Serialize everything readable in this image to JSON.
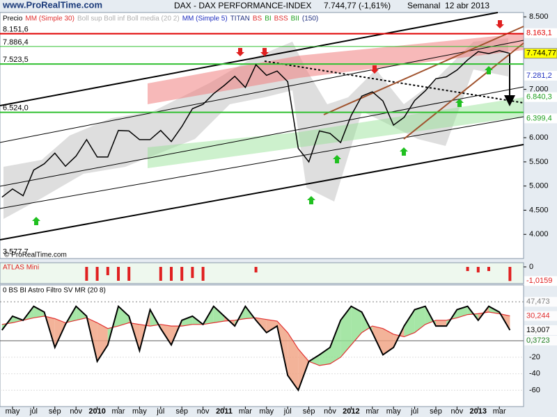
{
  "header": {
    "logo": "www.ProRealTime.com",
    "title": "DAX - DAX PERFORMANCE-INDEX",
    "price": "7.744,77 (-1,61%)",
    "period": "Semanal  12 abr 2013",
    "footer": "© ProRealTime.com"
  },
  "chart_data": [
    {
      "type": "line",
      "categories": [
        null,
        "may",
        null,
        "jul",
        null,
        "sep",
        null,
        "nov",
        null,
        "2010",
        null,
        "mar",
        null,
        "may",
        null,
        "jul",
        null,
        "sep",
        null,
        "nov",
        null,
        "2011",
        null,
        "mar",
        null,
        "may",
        null,
        "jul",
        null,
        "sep",
        null,
        "nov",
        null,
        "2012",
        null,
        "mar",
        null,
        "may",
        null,
        "jul",
        null,
        "sep",
        null,
        "nov",
        null,
        "2013",
        null,
        "mar",
        null
      ],
      "series": [
        {
          "name": "Precio",
          "color": "#000000",
          "values": [
            4770,
            4940,
            4800,
            5330,
            5460,
            5680,
            5410,
            5620,
            5960,
            5600,
            5600,
            6150,
            6140,
            5960,
            5960,
            6150,
            5920,
            6230,
            6600,
            6690,
            6910,
            7080,
            7270,
            7040,
            7510,
            7290,
            7380,
            7160,
            5780,
            5500,
            6140,
            6090,
            5900,
            6460,
            6860,
            6950,
            6760,
            6260,
            6420,
            6770,
            6970,
            7220,
            7260,
            7400,
            7610,
            7780,
            7740,
            7800,
            7744.77
          ]
        }
      ],
      "legend_extra": [
        {
          "text": "MM (Simple 30)",
          "color": "#e03030"
        },
        {
          "text": "Boll sup Boll inf Boll media (20 2)",
          "color": "#b0b0b0"
        },
        {
          "text": "MM (Simple 5)",
          "color": "#2030c0"
        },
        {
          "text": "TITAN",
          "color": "#203080"
        },
        {
          "text": "BS",
          "color": "#e03030"
        },
        {
          "text": "BI",
          "color": "#20a020"
        },
        {
          "text": "BSS",
          "color": "#e03030"
        },
        {
          "text": "BII",
          "color": "#20a020"
        },
        {
          "text": "(150)",
          "color": "#203080"
        }
      ],
      "ylim": [
        3500,
        8590
      ],
      "yticks": [
        {
          "value": 8500,
          "label": "8.500"
        },
        {
          "value": 7000,
          "label": "7.000"
        },
        {
          "value": 6000,
          "label": "6.000"
        },
        {
          "value": 5500,
          "label": "5.500"
        },
        {
          "value": 5000,
          "label": "5.000"
        },
        {
          "value": 4500,
          "label": "4.500"
        },
        {
          "value": 4000,
          "label": "4.000"
        }
      ],
      "levels": [
        {
          "value": 8151.6,
          "label": "8.151,6",
          "color": "#e00000",
          "width": 2
        },
        {
          "value": 7886.4,
          "label": "7.886,4",
          "color": "#30c030",
          "width": 1
        },
        {
          "value": 7523.5,
          "label": "7.523,5",
          "color": "#30c030",
          "width": 2
        },
        {
          "value": 6524.0,
          "label": "6.524,0",
          "color": "#30c030",
          "width": 2
        },
        {
          "value": 3577.7,
          "label": "3.577,7",
          "color": "#000000",
          "width": 0
        }
      ],
      "last_values": [
        {
          "value": 8163.1,
          "label": "8.163,1",
          "color": "#e00000",
          "box": "#ffffff"
        },
        {
          "value": 7744.77,
          "label": "7.744,77",
          "color": "#000000",
          "box": "#ffff00"
        },
        {
          "value": 7281.2,
          "label": "7.281,2",
          "color": "#2030c0",
          "box": "#ffffff"
        },
        {
          "value": 6840.3,
          "label": "6.840,3",
          "color": "#20a020",
          "box": "#ffffff"
        },
        {
          "value": 6399.4,
          "label": "6.399,4",
          "color": "#20a020",
          "box": "#ffffff"
        }
      ]
    },
    {
      "type": "bar",
      "title": "ATLAS Mini",
      "color": "#e02020",
      "values": [
        0,
        0,
        0,
        0,
        0,
        0,
        0,
        0,
        -1,
        -1,
        -0.6,
        -1,
        -1,
        0,
        0,
        -1,
        -1,
        -1,
        -0.8,
        -1,
        0,
        0,
        0,
        0,
        -0.4,
        0,
        0,
        0,
        0,
        0,
        0,
        0,
        0,
        0,
        0,
        0,
        0,
        0,
        0,
        0,
        0,
        0,
        0,
        0,
        -0.3,
        -0.4,
        -0.3,
        0,
        -1.0159
      ],
      "ylim": [
        -1.2,
        0.3
      ],
      "yticks": [
        0
      ],
      "last_value": {
        "value": -1.0159,
        "label": "-1,0159"
      }
    },
    {
      "type": "oscillator",
      "title": "0 BS BI Astro Filtro SV MR (20 8)",
      "series": [
        {
          "name": "0 BS BI Astro Filtro SV MR (20 8)",
          "color": "#000000",
          "values": [
            13,
            30,
            25,
            42,
            35,
            -8,
            20,
            42,
            30,
            -25,
            -5,
            42,
            30,
            -12,
            38,
            15,
            -5,
            25,
            30,
            20,
            42,
            30,
            18,
            42,
            25,
            10,
            18,
            -42,
            -60,
            -25,
            -17,
            -8,
            25,
            42,
            35,
            10,
            -17,
            -8,
            18,
            38,
            42,
            18,
            18,
            38,
            42,
            25,
            42,
            35,
            13.007
          ]
        },
        {
          "color": "#e03030",
          "values": [
            20,
            22,
            25,
            28,
            30,
            27,
            22,
            25,
            28,
            22,
            15,
            18,
            22,
            20,
            18,
            20,
            18,
            18,
            20,
            20,
            22,
            24,
            25,
            27,
            28,
            26,
            24,
            10,
            -10,
            -25,
            -30,
            -28,
            -20,
            -5,
            10,
            18,
            15,
            8,
            5,
            10,
            20,
            25,
            25,
            28,
            32,
            33,
            35,
            33,
            30.244
          ]
        }
      ],
      "ylim": [
        -80,
        68
      ],
      "yticks": [
        0,
        -20,
        -40,
        -60
      ],
      "levels": [
        {
          "value": 47.473,
          "label": "47,473",
          "color": "#808080"
        },
        {
          "value": 30.244,
          "label": "30,244",
          "color": "#e03030"
        },
        {
          "value": 13.007,
          "label": "13,007",
          "color": "#000000"
        },
        {
          "value": 0.3723,
          "label": "0,3723",
          "color": "#208020"
        }
      ]
    }
  ]
}
